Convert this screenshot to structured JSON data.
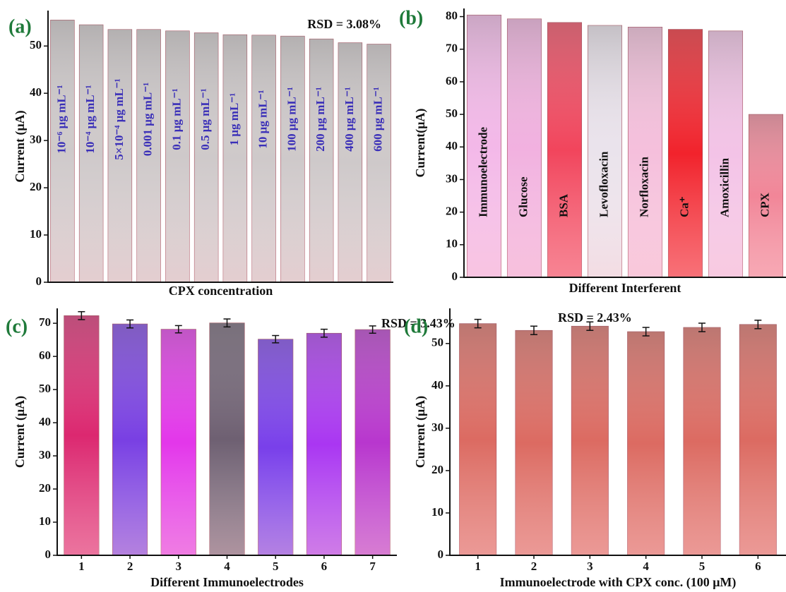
{
  "chart_data": [
    {
      "type": "bar",
      "panel_label": "(a)",
      "annotation": "RSD = 3.08%",
      "xlabel": "CPX concentration",
      "ylabel": "Current (μA)",
      "categories": [
        "10⁻⁶ μg mL⁻¹",
        "10⁻⁴ μg mL⁻¹",
        "5×10⁻⁴ μg mL⁻¹",
        "0.001 μg mL⁻¹",
        "0.1 μg mL⁻¹",
        "0.5 μg mL⁻¹",
        "1 μg mL⁻¹",
        "10 μg mL⁻¹",
        "100 μg mL⁻¹",
        "200 μg mL⁻¹",
        "400 μg mL⁻¹",
        "600 μg mL⁻¹"
      ],
      "values": [
        55.5,
        54.5,
        53.5,
        53.5,
        53.2,
        52.8,
        52.4,
        52.3,
        52.1,
        51.5,
        50.7,
        50.4
      ],
      "colors": [
        "#c9c3c4"
      ],
      "label_position": "inside",
      "label_color": "#3a2fb8",
      "ylim": [
        0,
        57.5
      ],
      "yticks": [
        0,
        10,
        20,
        30,
        40,
        50
      ]
    },
    {
      "type": "bar",
      "panel_label": "(b)",
      "xlabel": "Different Interferent",
      "ylabel": "Current(μA)",
      "categories": [
        "Immunoelectrode",
        "Glucose",
        "BSA",
        "Levofloxacin",
        "Norfloxacin",
        "Ca⁺",
        "Amoxicillin",
        "CPX"
      ],
      "values": [
        80.5,
        79.3,
        78.2,
        77.3,
        76.8,
        76.1,
        75.6,
        50.0
      ],
      "colors": [
        "#f2b0e6",
        "#f0a8dc",
        "#f0304a",
        "#e8e0ea",
        "#f4b8d8",
        "#f00a14",
        "#f2bce4",
        "#f0788c"
      ],
      "label_position": "inside",
      "label_color": "#111111",
      "ylim": [
        0,
        82.5
      ],
      "yticks": [
        0,
        10,
        20,
        30,
        40,
        50,
        60,
        70,
        80
      ]
    },
    {
      "type": "bar",
      "panel_label": "(c)",
      "annotation": "RSD = 3.43%",
      "xlabel": "Different Immunoelectrodes",
      "ylabel": "Current (μA)",
      "categories": [
        "1",
        "2",
        "3",
        "4",
        "5",
        "6",
        "7"
      ],
      "values": [
        72.3,
        69.8,
        68.2,
        70.1,
        65.2,
        67.0,
        68.1
      ],
      "errors": [
        1.2,
        1.2,
        1.1,
        1.2,
        1.1,
        1.2,
        1.1
      ],
      "colors": [
        "#d81060",
        "#6a2ae0",
        "#e020e8",
        "#5e4e62",
        "#6a2ae8",
        "#a020f0",
        "#b020c8"
      ],
      "label_position": "below",
      "label_color": "#111111",
      "ylim": [
        0,
        74.5
      ],
      "yticks": [
        0,
        10,
        20,
        30,
        40,
        50,
        60,
        70
      ]
    },
    {
      "type": "bar",
      "panel_label": "(d)",
      "annotation": "RSD = 2.43%",
      "xlabel": "Immunoelectrode with CPX conc. (100 μM)",
      "ylabel": "Current (μA)",
      "categories": [
        "1",
        "2",
        "3",
        "4",
        "5",
        "6"
      ],
      "values": [
        54.7,
        53.1,
        54.1,
        52.8,
        53.8,
        54.5
      ],
      "errors": [
        1.0,
        1.0,
        1.0,
        1.0,
        1.0,
        1.0
      ],
      "colors": [
        "#d85a50"
      ],
      "label_position": "below",
      "label_color": "#111111",
      "ylim": [
        0,
        58.3
      ],
      "yticks": [
        0,
        10,
        20,
        30,
        40,
        50
      ]
    }
  ]
}
